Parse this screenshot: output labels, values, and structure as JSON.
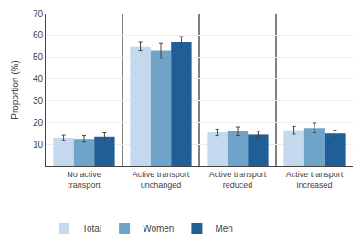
{
  "chart_data": {
    "type": "bar",
    "ylabel": "Proportion (%)",
    "categories": [
      "No active\ntransport",
      "Active transport\nunchanged",
      "Active transport\nreduced",
      "Active transport\nincreased"
    ],
    "series": [
      {
        "name": "Total",
        "color": "#c5d9ee",
        "values": [
          13.0,
          55.0,
          15.5,
          16.5
        ],
        "errors": [
          1.2,
          2.0,
          1.5,
          1.8
        ]
      },
      {
        "name": "Women",
        "color": "#6fa3c8",
        "values": [
          12.5,
          53.0,
          16.0,
          17.5
        ],
        "errors": [
          1.5,
          3.5,
          2.0,
          2.2
        ]
      },
      {
        "name": "Men",
        "color": "#1f5f96",
        "values": [
          13.5,
          57.0,
          14.5,
          15.0
        ],
        "errors": [
          1.8,
          2.5,
          1.5,
          1.5
        ]
      }
    ],
    "ylim": [
      0,
      70
    ],
    "yticks": [
      10,
      20,
      30,
      40,
      50,
      60,
      70
    ],
    "grid": true,
    "legend": "bottom"
  }
}
